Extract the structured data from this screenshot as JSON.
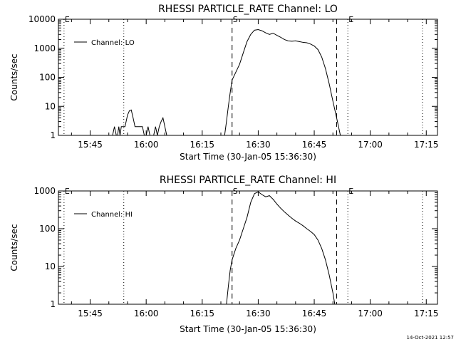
{
  "footer": {
    "timestamp": "14-Oct-2021 12:57"
  },
  "chart_data": [
    {
      "type": "line",
      "title": "RHESSI PARTICLE_RATE Channel: LO",
      "xlabel": "Start Time (30-Jan-05 15:36:30)",
      "ylabel": "Counts/sec",
      "yscale": "log",
      "xlim": [
        "15:36:30",
        "17:18:00"
      ],
      "ylim": [
        1,
        10000
      ],
      "x_ticks": [
        "15:45",
        "16:00",
        "16:15",
        "16:30",
        "16:45",
        "17:00",
        "17:15"
      ],
      "y_ticks": [
        "1",
        "10",
        "100",
        "1000",
        "10000"
      ],
      "legend": {
        "position": "top-left",
        "label": "Channel: LO"
      },
      "markers": [
        {
          "time": "15:38:00",
          "style": "dotted",
          "label": "E"
        },
        {
          "time": "15:54:00",
          "style": "dotted",
          "label": ""
        },
        {
          "time": "16:23:00",
          "style": "dashed",
          "label": "S"
        },
        {
          "time": "16:51:00",
          "style": "dashed",
          "label": ""
        },
        {
          "time": "16:54:00",
          "style": "dotted",
          "label": "E"
        },
        {
          "time": "17:14:00",
          "style": "dotted",
          "label": ""
        }
      ],
      "series": [
        {
          "name": "Channel: LO",
          "points": [
            [
              "15:51:00",
              1
            ],
            [
              "15:51:30",
              2
            ],
            [
              "15:52:00",
              1
            ],
            [
              "15:52:20",
              1
            ],
            [
              "15:52:40",
              2
            ],
            [
              "15:53:00",
              1
            ],
            [
              "15:53:20",
              2
            ],
            [
              "15:54:20",
              2
            ],
            [
              "15:55:00",
              5
            ],
            [
              "15:55:30",
              7
            ],
            [
              "15:56:00",
              7.5
            ],
            [
              "15:56:30",
              4
            ],
            [
              "15:57:00",
              2
            ],
            [
              "15:58:00",
              2
            ],
            [
              "15:59:00",
              2
            ],
            [
              "15:59:30",
              1
            ],
            [
              "16:00:00",
              1
            ],
            [
              "16:00:30",
              2
            ],
            [
              "16:01:00",
              1
            ],
            [
              "16:02:00",
              1
            ],
            [
              "16:02:30",
              2
            ],
            [
              "16:03:00",
              1
            ],
            [
              "16:03:30",
              2
            ],
            [
              "16:04:00",
              3
            ],
            [
              "16:04:30",
              4
            ],
            [
              "16:05:00",
              2
            ],
            [
              "16:05:30",
              1
            ],
            [
              "16:21:00",
              1
            ],
            [
              "16:21:30",
              3
            ],
            [
              "16:22:00",
              10
            ],
            [
              "16:22:30",
              30
            ],
            [
              "16:23:00",
              80
            ],
            [
              "16:24:00",
              150
            ],
            [
              "16:25:00",
              280
            ],
            [
              "16:26:00",
              700
            ],
            [
              "16:27:00",
              1700
            ],
            [
              "16:28:00",
              3000
            ],
            [
              "16:29:00",
              4200
            ],
            [
              "16:30:00",
              4400
            ],
            [
              "16:31:00",
              4000
            ],
            [
              "16:32:00",
              3400
            ],
            [
              "16:33:00",
              3000
            ],
            [
              "16:34:00",
              3300
            ],
            [
              "16:35:00",
              2800
            ],
            [
              "16:36:00",
              2400
            ],
            [
              "16:37:00",
              2000
            ],
            [
              "16:38:00",
              1800
            ],
            [
              "16:39:00",
              1750
            ],
            [
              "16:40:00",
              1800
            ],
            [
              "16:41:00",
              1700
            ],
            [
              "16:42:00",
              1600
            ],
            [
              "16:43:00",
              1550
            ],
            [
              "16:44:00",
              1400
            ],
            [
              "16:45:00",
              1200
            ],
            [
              "16:46:00",
              900
            ],
            [
              "16:47:00",
              500
            ],
            [
              "16:48:00",
              200
            ],
            [
              "16:49:00",
              60
            ],
            [
              "16:50:00",
              15
            ],
            [
              "16:51:00",
              4
            ],
            [
              "16:51:30",
              2
            ],
            [
              "16:52:00",
              1
            ]
          ]
        }
      ]
    },
    {
      "type": "line",
      "title": "RHESSI PARTICLE_RATE Channel: HI",
      "xlabel": "Start Time (30-Jan-05 15:36:30)",
      "ylabel": "Counts/sec",
      "yscale": "log",
      "xlim": [
        "15:36:30",
        "17:18:00"
      ],
      "ylim": [
        1,
        1000
      ],
      "x_ticks": [
        "15:45",
        "16:00",
        "16:15",
        "16:30",
        "16:45",
        "17:00",
        "17:15"
      ],
      "y_ticks": [
        "1",
        "10",
        "100",
        "1000"
      ],
      "legend": {
        "position": "top-left",
        "label": "Channel: HI"
      },
      "markers": [
        {
          "time": "15:38:00",
          "style": "dotted",
          "label": "E"
        },
        {
          "time": "15:54:00",
          "style": "dotted",
          "label": ""
        },
        {
          "time": "16:23:00",
          "style": "dashed",
          "label": "S"
        },
        {
          "time": "16:51:00",
          "style": "dashed",
          "label": ""
        },
        {
          "time": "16:54:00",
          "style": "dotted",
          "label": "E"
        },
        {
          "time": "17:14:00",
          "style": "dotted",
          "label": ""
        }
      ],
      "series": [
        {
          "name": "Channel: HI",
          "points": [
            [
              "16:21:30",
              1
            ],
            [
              "16:22:00",
              3
            ],
            [
              "16:22:30",
              8
            ],
            [
              "16:23:00",
              15
            ],
            [
              "16:24:00",
              30
            ],
            [
              "16:25:00",
              50
            ],
            [
              "16:26:00",
              100
            ],
            [
              "16:27:00",
              200
            ],
            [
              "16:28:00",
              500
            ],
            [
              "16:29:00",
              850
            ],
            [
              "16:30:00",
              950
            ],
            [
              "16:31:00",
              800
            ],
            [
              "16:32:00",
              700
            ],
            [
              "16:33:00",
              750
            ],
            [
              "16:34:00",
              600
            ],
            [
              "16:35:00",
              450
            ],
            [
              "16:36:00",
              350
            ],
            [
              "16:37:00",
              280
            ],
            [
              "16:38:00",
              230
            ],
            [
              "16:39:00",
              190
            ],
            [
              "16:40:00",
              160
            ],
            [
              "16:41:00",
              140
            ],
            [
              "16:42:00",
              120
            ],
            [
              "16:43:00",
              100
            ],
            [
              "16:44:00",
              85
            ],
            [
              "16:45:00",
              70
            ],
            [
              "16:46:00",
              50
            ],
            [
              "16:47:00",
              30
            ],
            [
              "16:48:00",
              15
            ],
            [
              "16:49:00",
              6
            ],
            [
              "16:50:00",
              2
            ],
            [
              "16:50:30",
              1
            ]
          ]
        }
      ]
    }
  ]
}
